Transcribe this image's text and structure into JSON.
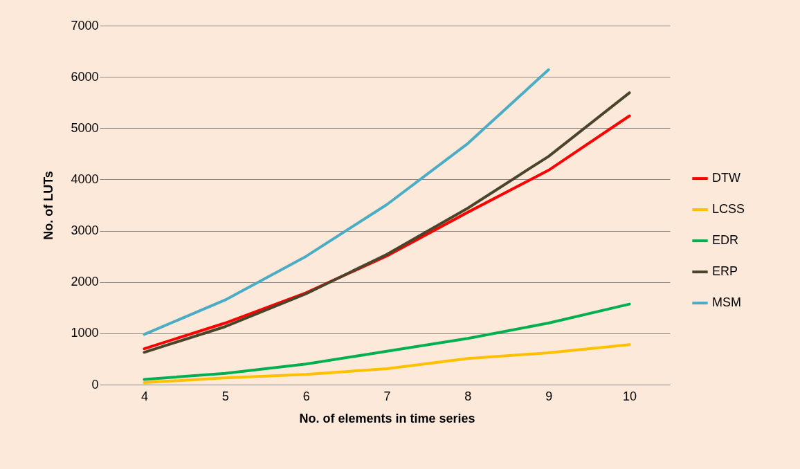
{
  "chart_data": {
    "type": "line",
    "xlabel": "No. of elements in time series",
    "ylabel": "No. of LUTs",
    "categories": [
      "4",
      "5",
      "6",
      "7",
      "8",
      "9",
      "10"
    ],
    "ylim": [
      0,
      7000
    ],
    "yticks": [
      0,
      1000,
      2000,
      3000,
      4000,
      5000,
      6000,
      7000
    ],
    "grid": "y",
    "legend": "right",
    "marker": "none",
    "line_style": "solid",
    "series": [
      {
        "name": "DTW",
        "color": "#ff0000",
        "values": [
          700,
          1200,
          1790,
          2510,
          3360,
          4180,
          5240
        ]
      },
      {
        "name": "LCSS",
        "color": "#ffc000",
        "values": [
          40,
          130,
          200,
          310,
          510,
          620,
          780
        ]
      },
      {
        "name": "EDR",
        "color": "#00b050",
        "values": [
          100,
          220,
          400,
          650,
          900,
          1200,
          1570
        ]
      },
      {
        "name": "ERP",
        "color": "#4a452a",
        "values": [
          630,
          1130,
          1770,
          2540,
          3440,
          4450,
          5690
        ]
      },
      {
        "name": "MSM",
        "color": "#4bacc6",
        "values": [
          980,
          1650,
          2500,
          3510,
          4700,
          6140,
          null
        ]
      }
    ]
  }
}
